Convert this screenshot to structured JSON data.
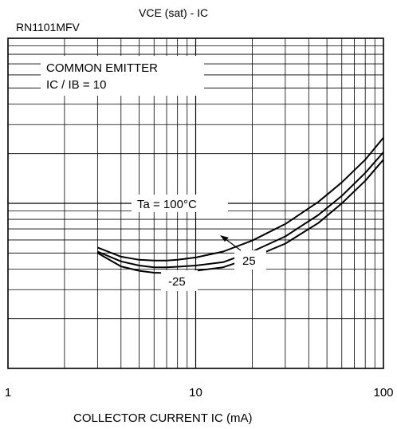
{
  "header": {
    "part_number": "RN1101MFV",
    "chart_title": "VCE (sat) - IC"
  },
  "chart_data": {
    "type": "line",
    "title": "VCE (sat) - IC",
    "xlabel": "COLLECTOR CURRENT   IC (mA)",
    "ylabel": "",
    "xscale": "log",
    "yscale": "log",
    "xlim": [
      1,
      100
    ],
    "ylim": [
      0.01,
      1
    ],
    "xticks": [
      "1",
      "10",
      "100"
    ],
    "yticks": [],
    "grid": true,
    "annotations": {
      "condition_1": "COMMON EMITTER",
      "condition_2": "IC / IB = 10",
      "label_100": "Ta = 100°C",
      "label_25": "25",
      "label_m25": "-25"
    },
    "series": [
      {
        "x": [
          3,
          4,
          5,
          6,
          7,
          8,
          10,
          14,
          20,
          30,
          45,
          60,
          80,
          100
        ],
        "values": [
          0.054,
          0.0475,
          0.0455,
          0.045,
          0.045,
          0.0455,
          0.047,
          0.051,
          0.0595,
          0.075,
          0.102,
          0.134,
          0.184,
          0.25
        ]
      },
      {
        "x": [
          3,
          4,
          5,
          6,
          7,
          8,
          10,
          14,
          20,
          30,
          45,
          60,
          80,
          100
        ],
        "values": [
          0.051,
          0.0445,
          0.042,
          0.041,
          0.041,
          0.0413,
          0.042,
          0.044,
          0.051,
          0.063,
          0.085,
          0.111,
          0.153,
          0.204
        ]
      },
      {
        "x": [
          3,
          4,
          5,
          6,
          7,
          8,
          10,
          14,
          20,
          30,
          45,
          60,
          80,
          100
        ],
        "values": [
          0.05,
          0.0415,
          0.039,
          0.038,
          0.0378,
          0.038,
          0.039,
          0.041,
          0.047,
          0.057,
          0.076,
          0.1,
          0.137,
          0.184
        ]
      }
    ]
  }
}
